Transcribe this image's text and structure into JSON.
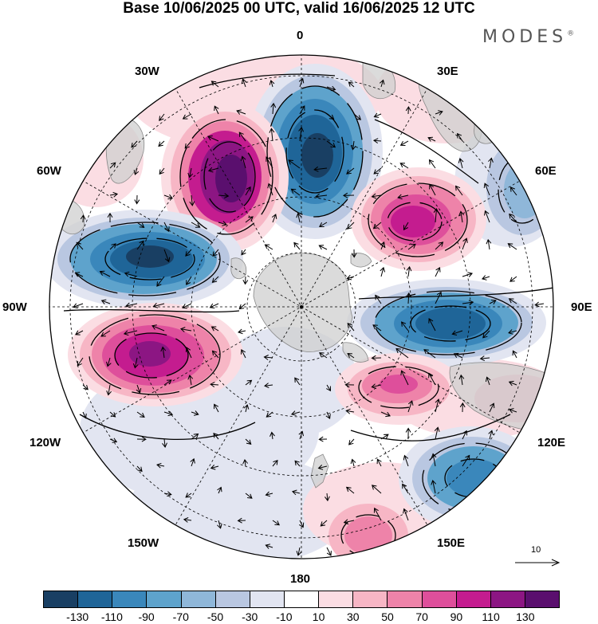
{
  "title": "Base 10/06/2025 00 UTC, valid 16/06/2025 12 UTC",
  "brand": "MODES",
  "brand_mark": "®",
  "longitude_labels": {
    "lon_0": "0",
    "lon_30e": "30E",
    "lon_60e": "60E",
    "lon_90e": "90E",
    "lon_120e": "120E",
    "lon_150e": "150E",
    "lon_180": "180",
    "lon_150w": "150W",
    "lon_120w": "120W",
    "lon_90w": "90W",
    "lon_60w": "60W",
    "lon_30w": "30W"
  },
  "reference_vector": "10",
  "colorbar": {
    "colors": [
      "#193f63",
      "#1f6598",
      "#3a87bb",
      "#5ea3cc",
      "#8fb7d9",
      "#b9c7e1",
      "#e2e5f1",
      "#ffffff",
      "#fbdde3",
      "#f7b6c5",
      "#ee83a9",
      "#de4f9b",
      "#c41c8f",
      "#8c1683",
      "#5a0f6e"
    ],
    "ticks": [
      "-130",
      "-110",
      "-90",
      "-70",
      "-50",
      "-30",
      "-10",
      "10",
      "30",
      "50",
      "70",
      "90",
      "110",
      "130"
    ]
  },
  "icons": {
    "map": "south-polar-stereographic-map",
    "arrow": "wind-vector-arrow"
  }
}
